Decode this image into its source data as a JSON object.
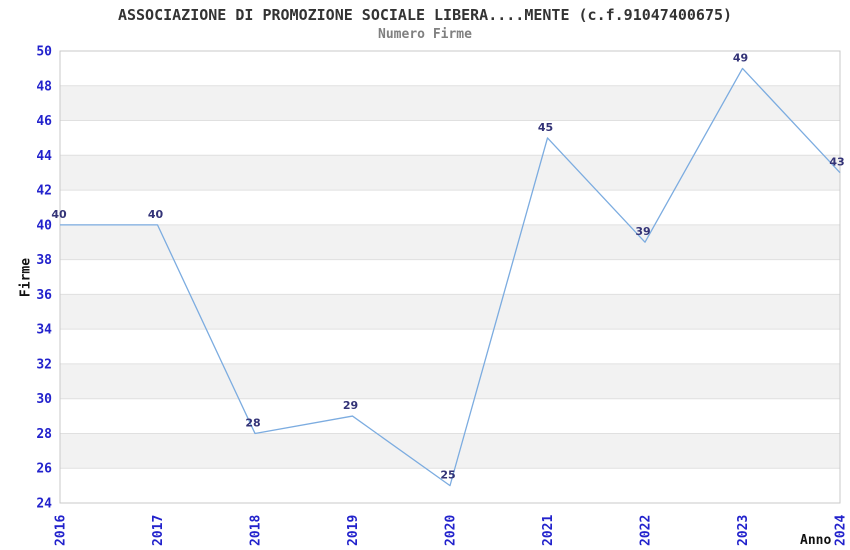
{
  "chart_data": {
    "type": "line",
    "title": "ASSOCIAZIONE DI PROMOZIONE SOCIALE LIBERA....MENTE (c.f.91047400675)",
    "subtitle": "Numero Firme",
    "xlabel": "Anno",
    "ylabel": "Firme",
    "categories": [
      "2016",
      "2017",
      "2018",
      "2019",
      "2020",
      "2021",
      "2022",
      "2023",
      "2024"
    ],
    "series": [
      {
        "name": "Numero Firme",
        "values": [
          40,
          40,
          28,
          29,
          25,
          45,
          39,
          49,
          43
        ]
      }
    ],
    "data_labels_shown": true,
    "ylim": [
      24,
      50
    ],
    "ytick_step": 2,
    "grid": "horizontal-bands-alternating",
    "legend": "none",
    "colors": {
      "line": "#7CACE0",
      "tick_label": "#2222CC",
      "value_label": "#333377",
      "band_gray": "#F2F2F2",
      "band_white": "#FFFFFF",
      "gridline": "#E0E0E0",
      "plot_border": "#C9C9C9",
      "title": "#333333",
      "subtitle": "#808080",
      "axis_title": "#111111"
    }
  }
}
